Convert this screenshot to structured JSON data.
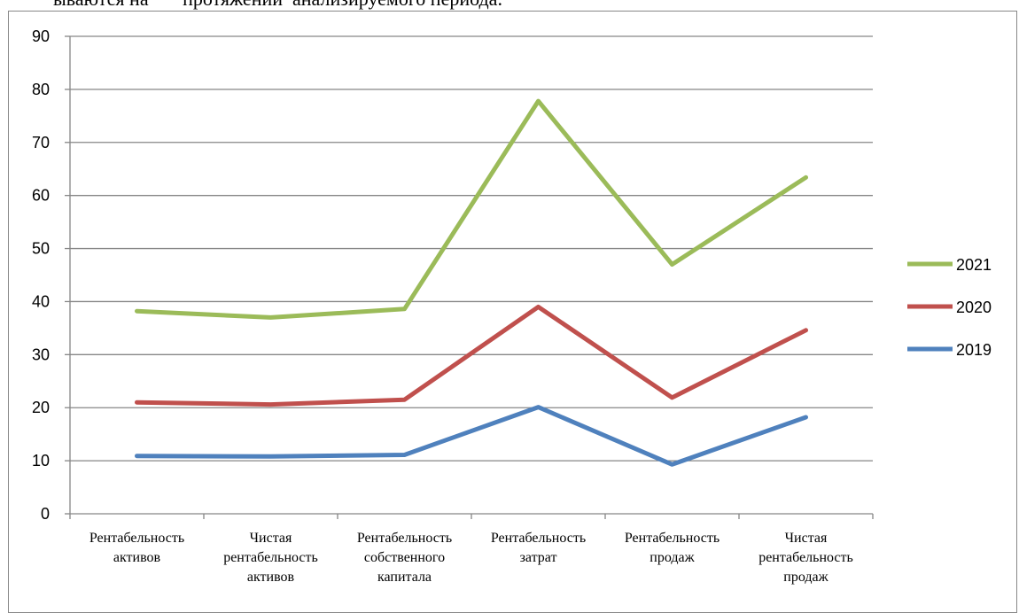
{
  "document": {
    "intro_fragment": "ываются на       протяжении  анализируемого периода."
  },
  "chart_data": {
    "type": "line",
    "title": "",
    "xlabel": "",
    "ylabel": "",
    "ylim": [
      0,
      90
    ],
    "ytick_step": 10,
    "grid": true,
    "legend_position": "right",
    "categories": [
      [
        "Рентабельность",
        "активов"
      ],
      [
        "Чистая",
        "рентабельность",
        "активов"
      ],
      [
        "Рентабельность",
        "собственного",
        "капитала"
      ],
      [
        "Рентабельность",
        "затрат"
      ],
      [
        "Рентабельность",
        "продаж"
      ],
      [
        "Чистая",
        "рентабельность",
        "продаж"
      ]
    ],
    "series": [
      {
        "name": "2021",
        "color": "#9BBB59",
        "values": [
          38.2,
          37.0,
          38.6,
          77.8,
          47.0,
          63.4
        ]
      },
      {
        "name": "2020",
        "color": "#C0504D",
        "values": [
          21.0,
          20.6,
          21.5,
          39.0,
          21.9,
          34.6
        ]
      },
      {
        "name": "2019",
        "color": "#4F81BD",
        "values": [
          10.9,
          10.8,
          11.1,
          20.1,
          9.3,
          18.2
        ]
      }
    ]
  }
}
